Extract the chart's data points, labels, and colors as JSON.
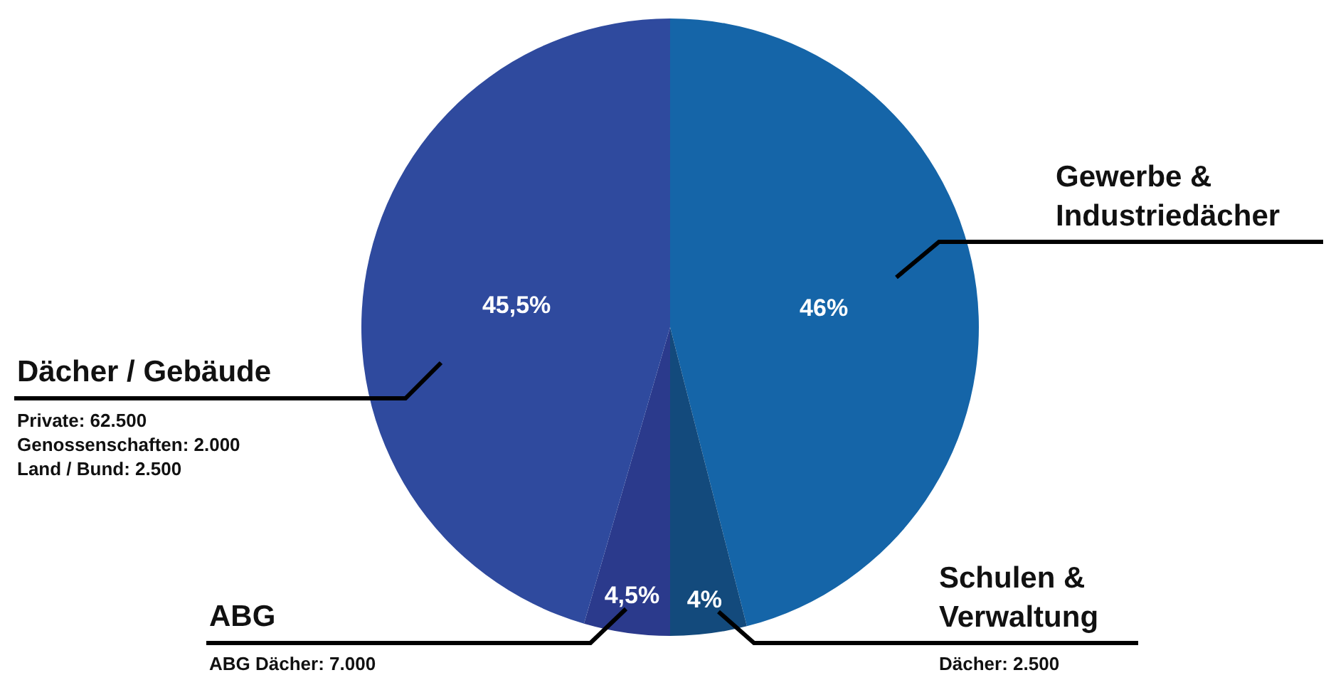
{
  "chart_data": {
    "type": "pie",
    "categories": [
      "Gewerbe &\nIndustriedächer",
      "Schulen &\nVerwaltung",
      "ABG",
      "Dächer / Gebäude"
    ],
    "values": [
      46,
      4,
      4.5,
      45.5
    ],
    "colors": [
      "#1565a8",
      "#134a7c",
      "#2b3a8c",
      "#2f4a9e"
    ],
    "value_labels": [
      "46%",
      "4%",
      "4,5%",
      "45,5%"
    ],
    "annotations": [
      "Private: 62.500\nGenossenschaften: 2.000\nLand / Bund: 2.500",
      "ABG Dächer: 7.000",
      "Dächer: 2.500"
    ],
    "legend": false
  }
}
